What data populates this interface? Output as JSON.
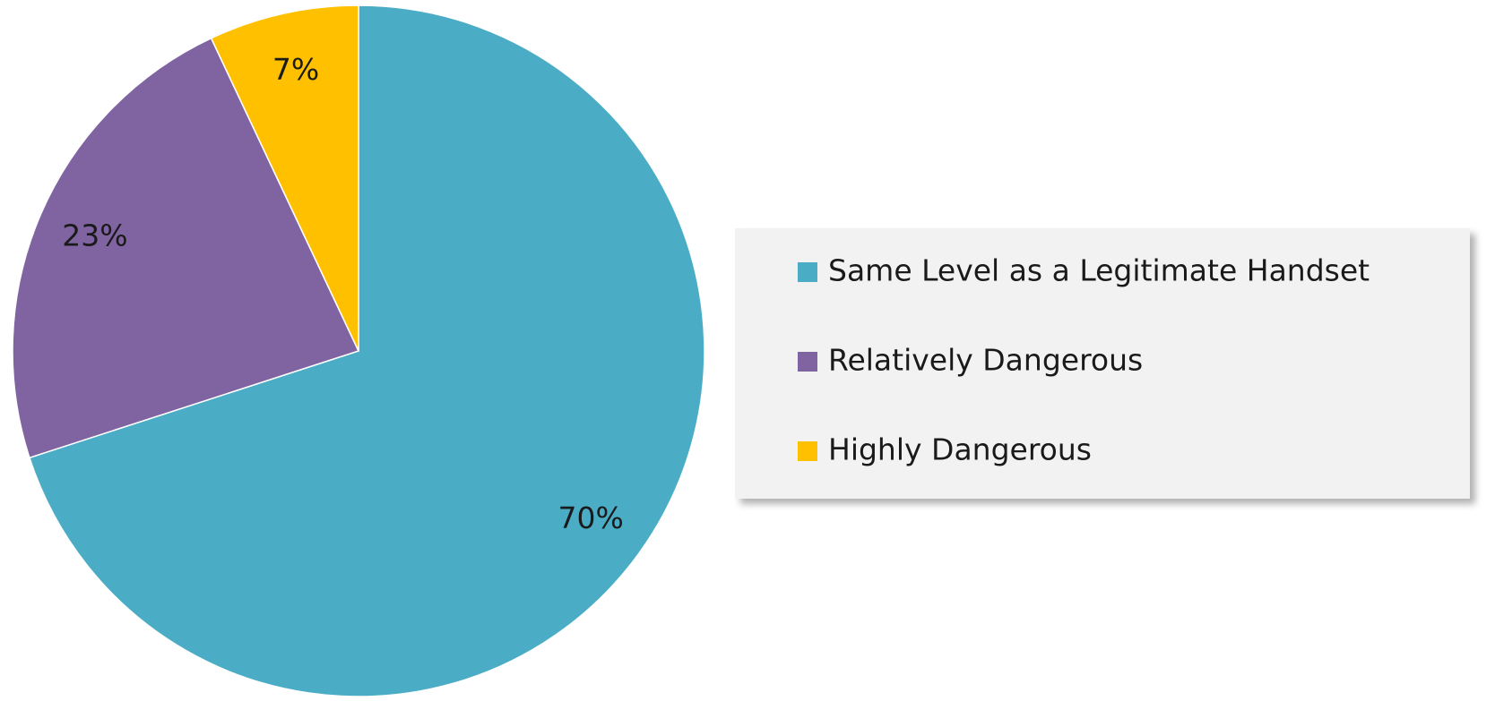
{
  "chart_data": {
    "type": "pie",
    "categories": [
      "Same Level as a Legitimate Handset",
      "Relatively Dangerous",
      "Highly Dangerous"
    ],
    "values": [
      70,
      23,
      7
    ],
    "value_labels": [
      "70%",
      "23%",
      "7%"
    ],
    "colors": [
      "#4bacc6",
      "#8064a2",
      "#ffc000"
    ],
    "legend": "right"
  }
}
